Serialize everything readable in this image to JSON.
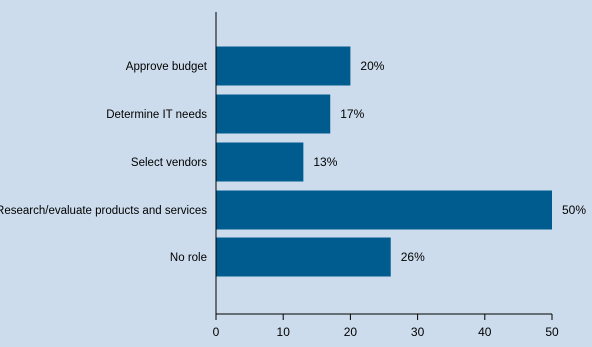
{
  "chart_data": {
    "type": "bar",
    "orientation": "horizontal",
    "categories": [
      "Approve budget",
      "Determine IT needs",
      "Select vendors",
      "Research/evaluate products and services",
      "No role"
    ],
    "values": [
      20,
      17,
      13,
      50,
      26
    ],
    "value_labels": [
      "20%",
      "17%",
      "13%",
      "50%",
      "26%"
    ],
    "x_ticks": [
      "0",
      "10",
      "20",
      "30",
      "40",
      "50"
    ],
    "xlim": [
      0,
      50
    ],
    "grid": false,
    "legend": "none",
    "colors": {
      "bar": "#005b8f",
      "background": "#ccdcec",
      "axis": "#000000"
    }
  }
}
